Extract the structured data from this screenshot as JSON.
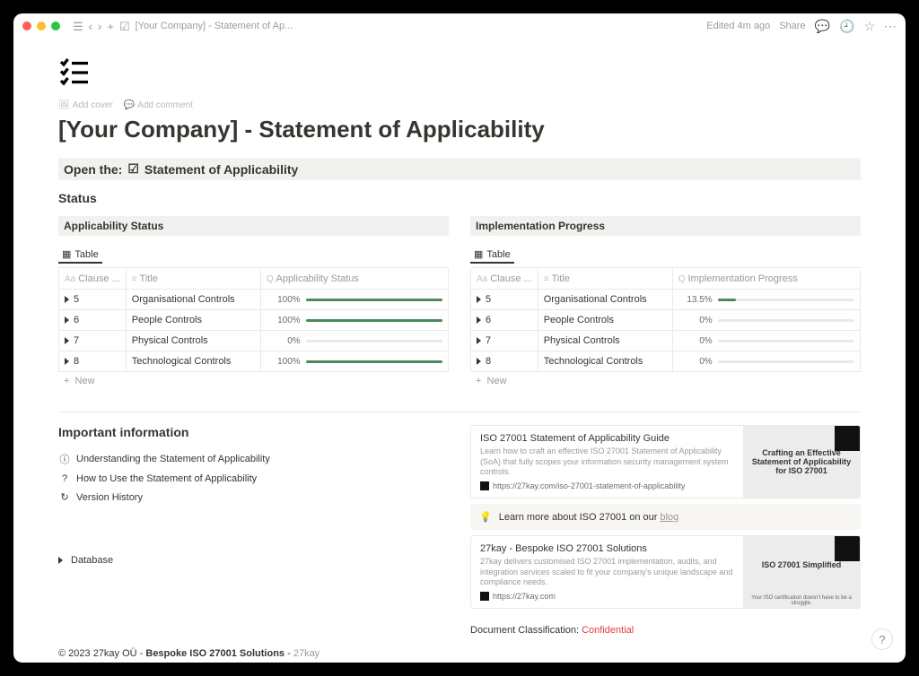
{
  "breadcrumb": "[Your Company] - Statement of Ap...",
  "header": {
    "edited": "Edited 4m ago",
    "share": "Share"
  },
  "page": {
    "add_cover": "Add cover",
    "add_comment": "Add comment",
    "title": "[Your Company] - Statement of Applicability",
    "open_prefix": "Open the:",
    "open_link": "Statement of Applicability",
    "status_heading": "Status"
  },
  "applicability": {
    "heading": "Applicability Status",
    "view_label": "Table",
    "columns": {
      "clause": "Clause ...",
      "title": "Title",
      "status": "Applicability Status"
    },
    "progress_color": "#4a8a5a",
    "rows": [
      {
        "clause": "5",
        "title": "Organisational Controls",
        "pct": 100,
        "label": "100%"
      },
      {
        "clause": "6",
        "title": "People Controls",
        "pct": 100,
        "label": "100%"
      },
      {
        "clause": "7",
        "title": "Physical Controls",
        "pct": 0,
        "label": "0%"
      },
      {
        "clause": "8",
        "title": "Technological Controls",
        "pct": 100,
        "label": "100%"
      }
    ],
    "add_new": "New"
  },
  "implementation": {
    "heading": "Implementation Progress",
    "view_label": "Table",
    "columns": {
      "clause": "Clause ...",
      "title": "Title",
      "progress": "Implementation Progress"
    },
    "progress_color": "#4a8a5a",
    "rows": [
      {
        "clause": "5",
        "title": "Organisational Controls",
        "pct": 13.5,
        "label": "13.5%"
      },
      {
        "clause": "6",
        "title": "People Controls",
        "pct": 0,
        "label": "0%"
      },
      {
        "clause": "7",
        "title": "Physical Controls",
        "pct": 0,
        "label": "0%"
      },
      {
        "clause": "8",
        "title": "Technological Controls",
        "pct": 0,
        "label": "0%"
      }
    ],
    "add_new": "New"
  },
  "info": {
    "heading": "Important information",
    "items": [
      {
        "icon": "ⓘ",
        "label": "Understanding the Statement of Applicability"
      },
      {
        "icon": "?",
        "label": "How to Use the Statement of Applicability"
      },
      {
        "icon": "↻",
        "label": "Version History"
      }
    ]
  },
  "bookmarks": [
    {
      "title": "ISO 27001 Statement of Applicability Guide",
      "desc": "Learn how to craft an effective ISO 27001 Statement of Applicability (SoA) that fully scopes your information security management system controls.",
      "url": "https://27kay.com/iso-27001-statement-of-applicability",
      "thumb_main": "Crafting an Effective Statement of Applicability for ISO 27001",
      "thumb_sub": ""
    },
    {
      "title": "27kay - Bespoke ISO 27001 Solutions",
      "desc": "27kay delivers customised ISO 27001 implementation, audits, and integration services scaled to fit your company's unique landscape and compliance needs.",
      "url": "https://27kay.com",
      "thumb_main": "ISO 27001 Simplified",
      "thumb_sub": "Your ISO certification doesn't have to be a struggle."
    }
  ],
  "callout": {
    "icon": "💡",
    "text": "Learn more about ISO 27001 on our ",
    "link": "blog"
  },
  "database_toggle": "Database",
  "classification": {
    "label": "Document Classification: ",
    "value": "Confidential"
  },
  "footer": {
    "copyright": "© 2023 27kay OÜ - ",
    "company": "Bespoke ISO 27001 Solutions",
    "sep": " - ",
    "link": "27kay"
  }
}
